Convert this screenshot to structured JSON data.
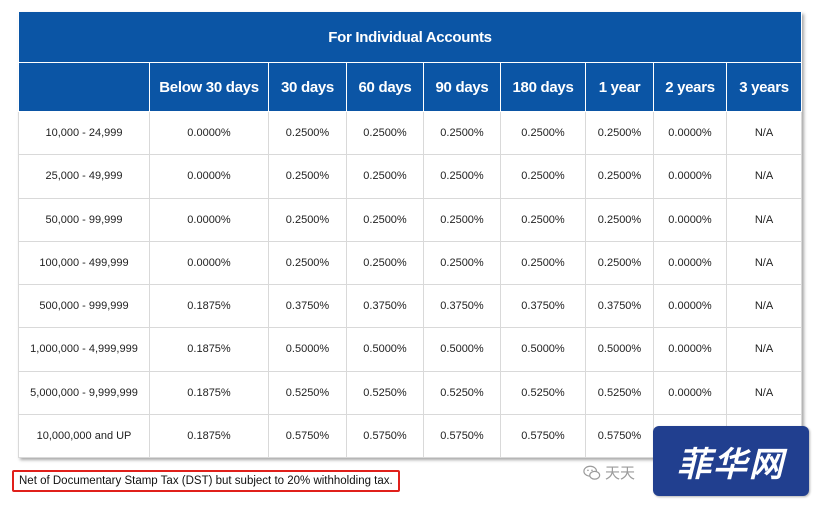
{
  "table": {
    "title": "For Individual Accounts",
    "headers": [
      "",
      "Below 30 days",
      "30 days",
      "60 days",
      "90 days",
      "180 days",
      "1 year",
      "2 years",
      "3 years"
    ],
    "rows": [
      [
        "10,000 - 24,999",
        "0.0000%",
        "0.2500%",
        "0.2500%",
        "0.2500%",
        "0.2500%",
        "0.2500%",
        "0.0000%",
        "N/A"
      ],
      [
        "25,000 - 49,999",
        "0.0000%",
        "0.2500%",
        "0.2500%",
        "0.2500%",
        "0.2500%",
        "0.2500%",
        "0.0000%",
        "N/A"
      ],
      [
        "50,000 - 99,999",
        "0.0000%",
        "0.2500%",
        "0.2500%",
        "0.2500%",
        "0.2500%",
        "0.2500%",
        "0.0000%",
        "N/A"
      ],
      [
        "100,000 - 499,999",
        "0.0000%",
        "0.2500%",
        "0.2500%",
        "0.2500%",
        "0.2500%",
        "0.2500%",
        "0.0000%",
        "N/A"
      ],
      [
        "500,000 - 999,999",
        "0.1875%",
        "0.3750%",
        "0.3750%",
        "0.3750%",
        "0.3750%",
        "0.3750%",
        "0.0000%",
        "N/A"
      ],
      [
        "1,000,000 - 4,999,999",
        "0.1875%",
        "0.5000%",
        "0.5000%",
        "0.5000%",
        "0.5000%",
        "0.5000%",
        "0.0000%",
        "N/A"
      ],
      [
        "5,000,000 - 9,999,999",
        "0.1875%",
        "0.5250%",
        "0.5250%",
        "0.5250%",
        "0.5250%",
        "0.5250%",
        "0.0000%",
        "N/A"
      ],
      [
        "10,000,000 and UP",
        "0.1875%",
        "0.5750%",
        "0.5750%",
        "0.5750%",
        "0.5750%",
        "0.5750%",
        "",
        ""
      ]
    ]
  },
  "footnote": "Net of Documentary Stamp Tax (DST) but subject to 20% withholding tax.",
  "watermark": {
    "text": "天天",
    "icon": "wechat-icon"
  },
  "logo": {
    "text": "菲华网"
  },
  "colors": {
    "header_bg": "#0b55a5",
    "footnote_border": "#e0201b",
    "logo_bg": "#213f8f"
  }
}
